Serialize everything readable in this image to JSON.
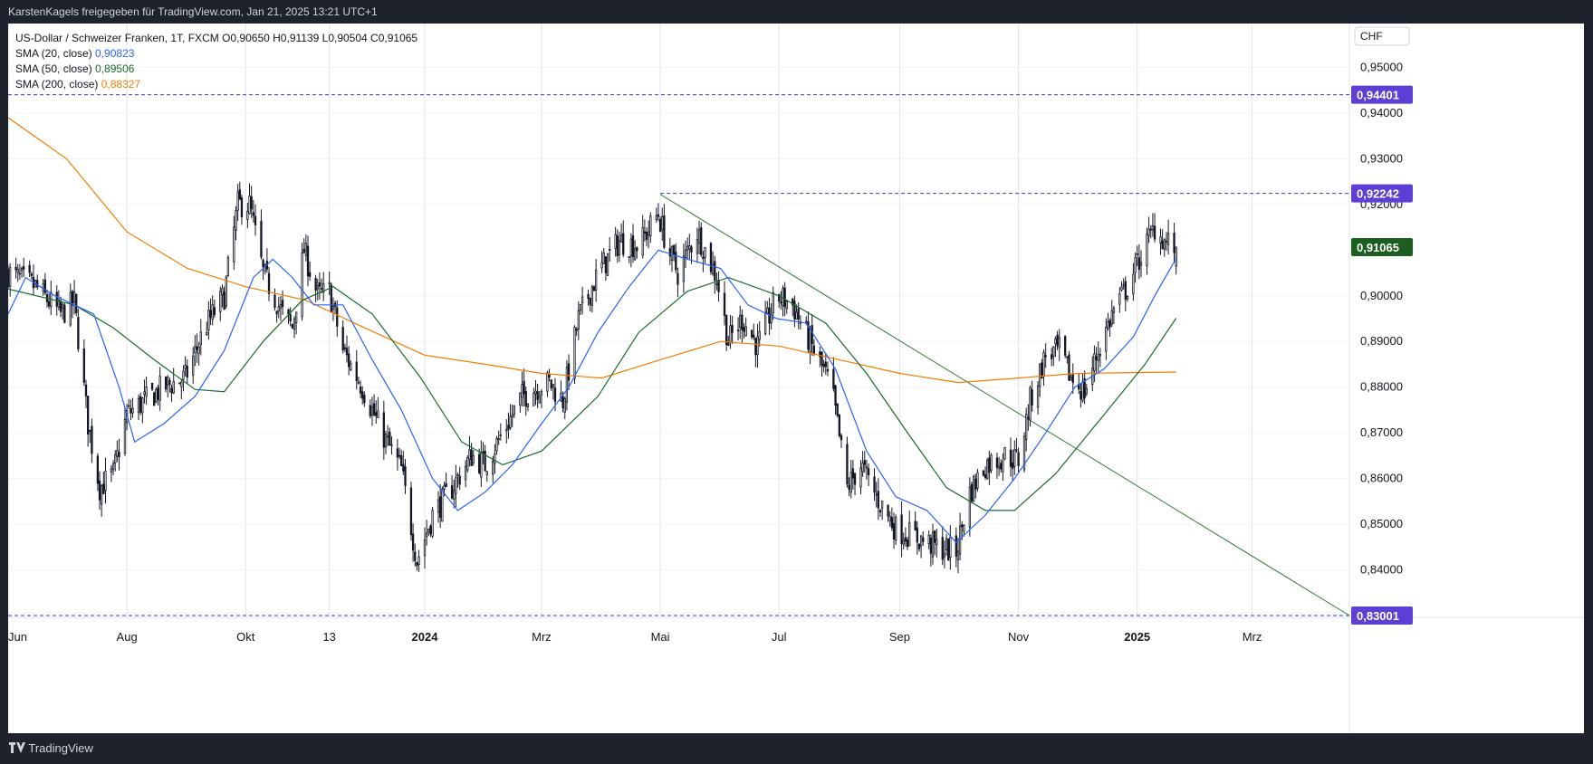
{
  "header": {
    "text": "KarstenKagels freigegeben für TradingView.com, Jan 21, 2025 13:21 UTC+1"
  },
  "legend": {
    "title": "US-Dollar / Schweizer Franken, 1T, FXCM",
    "ohlc": {
      "O": "O0,90650",
      "H": "H0,91139",
      "L": "L0,90504",
      "C": "C0,91065"
    },
    "sma20": {
      "label": "SMA (20, close)",
      "value": "0,90823",
      "color": "#2962ff"
    },
    "sma50": {
      "label": "SMA (50, close)",
      "value": "0,89506",
      "color": "#1b6b2a"
    },
    "sma200": {
      "label": "SMA (200, close)",
      "value": "0,88327",
      "color": "#f57c00"
    }
  },
  "currency_button": "CHF",
  "footer": {
    "brand": "TradingView"
  },
  "colors": {
    "up": "#ffffff",
    "down": "#131722",
    "h_level": "#3d3dbd",
    "trendline": "#2e7d32",
    "last_price_bg": "#1b5e20",
    "level_bg": "#5d3fd3"
  },
  "chart_data": {
    "type": "candlestick",
    "ylim": [
      0.8298,
      0.9596
    ],
    "y_ticks": [
      {
        "value": 0.95,
        "label": "0,95000"
      },
      {
        "value": 0.94,
        "label": "0,94000"
      },
      {
        "value": 0.93,
        "label": "0,93000"
      },
      {
        "value": 0.92,
        "label": "0,92000"
      },
      {
        "value": 0.9,
        "label": "0,90000"
      },
      {
        "value": 0.89,
        "label": "0,89000"
      },
      {
        "value": 0.88,
        "label": "0,88000"
      },
      {
        "value": 0.87,
        "label": "0,87000"
      },
      {
        "value": 0.86,
        "label": "0,86000"
      },
      {
        "value": 0.85,
        "label": "0,85000"
      },
      {
        "value": 0.84,
        "label": "0,84000"
      }
    ],
    "x_ticks": [
      {
        "date": "2023-06-01",
        "label": "Jun",
        "bold": false
      },
      {
        "date": "2023-08-01",
        "label": "Aug",
        "bold": false
      },
      {
        "date": "2023-10-01",
        "label": "Okt",
        "bold": false
      },
      {
        "date": "2023-11-13",
        "label": "13",
        "bold": false
      },
      {
        "date": "2024-01-01",
        "label": "2024",
        "bold": true
      },
      {
        "date": "2024-03-01",
        "label": "Mrz",
        "bold": false
      },
      {
        "date": "2024-05-01",
        "label": "Mai",
        "bold": false
      },
      {
        "date": "2024-07-01",
        "label": "Jul",
        "bold": false
      },
      {
        "date": "2024-09-01",
        "label": "Sep",
        "bold": false
      },
      {
        "date": "2024-11-01",
        "label": "Nov",
        "bold": false
      },
      {
        "date": "2025-01-01",
        "label": "2025",
        "bold": true
      },
      {
        "date": "2025-03-01",
        "label": "Mrz",
        "bold": false
      }
    ],
    "x_range": [
      "2023-06-01",
      "2025-04-20"
    ],
    "horizontal_levels": [
      {
        "value": 0.94401,
        "label": "0,94401",
        "from": "2023-06-01"
      },
      {
        "value": 0.92242,
        "label": "0,92242",
        "from": "2024-05-01"
      },
      {
        "value": 0.83001,
        "label": "0,83001",
        "from": "2023-06-01"
      }
    ],
    "last_price": {
      "value": 0.91065,
      "label": "0,91065"
    },
    "trendline": [
      {
        "date": "2024-05-01",
        "value": 0.9222
      },
      {
        "date": "2025-04-20",
        "value": 0.83
      }
    ],
    "price_path": [
      [
        "2023-06-01",
        0.905
      ],
      [
        "2023-06-15",
        0.902
      ],
      [
        "2023-06-28",
        0.896
      ],
      [
        "2023-07-05",
        0.8985
      ],
      [
        "2023-07-12",
        0.872
      ],
      [
        "2023-07-18",
        0.858
      ],
      [
        "2023-07-25",
        0.861
      ],
      [
        "2023-08-01",
        0.874
      ],
      [
        "2023-08-10",
        0.877
      ],
      [
        "2023-08-20",
        0.88
      ],
      [
        "2023-08-31",
        0.882
      ],
      [
        "2023-09-10",
        0.893
      ],
      [
        "2023-09-20",
        0.9
      ],
      [
        "2023-09-27",
        0.92
      ],
      [
        "2023-10-03",
        0.92
      ],
      [
        "2023-10-10",
        0.905
      ],
      [
        "2023-10-20",
        0.896
      ],
      [
        "2023-10-25",
        0.893
      ],
      [
        "2023-10-31",
        0.91
      ],
      [
        "2023-11-07",
        0.9
      ],
      [
        "2023-11-13",
        0.901
      ],
      [
        "2023-11-20",
        0.888
      ],
      [
        "2023-11-30",
        0.88
      ],
      [
        "2023-12-10",
        0.87
      ],
      [
        "2023-12-20",
        0.862
      ],
      [
        "2023-12-28",
        0.842
      ],
      [
        "2024-01-05",
        0.852
      ],
      [
        "2024-01-15",
        0.858
      ],
      [
        "2024-01-25",
        0.865
      ],
      [
        "2024-02-01",
        0.863
      ],
      [
        "2024-02-10",
        0.87
      ],
      [
        "2024-02-20",
        0.878
      ],
      [
        "2024-02-28",
        0.88
      ],
      [
        "2024-03-05",
        0.881
      ],
      [
        "2024-03-12",
        0.877
      ],
      [
        "2024-03-20",
        0.895
      ],
      [
        "2024-03-30",
        0.905
      ],
      [
        "2024-04-10",
        0.912
      ],
      [
        "2024-04-20",
        0.911
      ],
      [
        "2024-04-30",
        0.918
      ],
      [
        "2024-05-05",
        0.91
      ],
      [
        "2024-05-10",
        0.905
      ],
      [
        "2024-05-20",
        0.914
      ],
      [
        "2024-05-30",
        0.904
      ],
      [
        "2024-06-05",
        0.89
      ],
      [
        "2024-06-12",
        0.895
      ],
      [
        "2024-06-20",
        0.889
      ],
      [
        "2024-06-30",
        0.9
      ],
      [
        "2024-07-08",
        0.898
      ],
      [
        "2024-07-20",
        0.887
      ],
      [
        "2024-07-28",
        0.88
      ],
      [
        "2024-08-05",
        0.858
      ],
      [
        "2024-08-12",
        0.863
      ],
      [
        "2024-08-20",
        0.856
      ],
      [
        "2024-08-30",
        0.849
      ],
      [
        "2024-09-10",
        0.847
      ],
      [
        "2024-09-20",
        0.845
      ],
      [
        "2024-09-30",
        0.844
      ],
      [
        "2024-10-07",
        0.857
      ],
      [
        "2024-10-15",
        0.863
      ],
      [
        "2024-10-25",
        0.865
      ],
      [
        "2024-11-01",
        0.864
      ],
      [
        "2024-11-07",
        0.877
      ],
      [
        "2024-11-15",
        0.887
      ],
      [
        "2024-11-22",
        0.888
      ],
      [
        "2024-11-28",
        0.882
      ],
      [
        "2024-12-05",
        0.879
      ],
      [
        "2024-12-12",
        0.888
      ],
      [
        "2024-12-20",
        0.897
      ],
      [
        "2024-12-27",
        0.902
      ],
      [
        "2025-01-03",
        0.909
      ],
      [
        "2025-01-10",
        0.915
      ],
      [
        "2025-01-15",
        0.912
      ],
      [
        "2025-01-21",
        0.9107
      ]
    ],
    "sma20_path": [
      [
        "2023-06-01",
        0.896
      ],
      [
        "2023-06-10",
        0.904
      ],
      [
        "2023-06-25",
        0.9
      ],
      [
        "2023-07-15",
        0.896
      ],
      [
        "2023-07-28",
        0.88
      ],
      [
        "2023-08-05",
        0.868
      ],
      [
        "2023-08-20",
        0.872
      ],
      [
        "2023-09-05",
        0.878
      ],
      [
        "2023-09-20",
        0.888
      ],
      [
        "2023-10-05",
        0.904
      ],
      [
        "2023-10-15",
        0.908
      ],
      [
        "2023-10-25",
        0.904
      ],
      [
        "2023-11-05",
        0.898
      ],
      [
        "2023-11-20",
        0.898
      ],
      [
        "2023-12-05",
        0.886
      ],
      [
        "2023-12-20",
        0.875
      ],
      [
        "2024-01-05",
        0.86
      ],
      [
        "2024-01-18",
        0.853
      ],
      [
        "2024-02-01",
        0.857
      ],
      [
        "2024-02-15",
        0.863
      ],
      [
        "2024-03-01",
        0.872
      ],
      [
        "2024-03-15",
        0.88
      ],
      [
        "2024-03-30",
        0.892
      ],
      [
        "2024-04-15",
        0.902
      ],
      [
        "2024-04-30",
        0.91
      ],
      [
        "2024-05-15",
        0.908
      ],
      [
        "2024-06-01",
        0.906
      ],
      [
        "2024-06-15",
        0.898
      ],
      [
        "2024-06-30",
        0.895
      ],
      [
        "2024-07-15",
        0.894
      ],
      [
        "2024-07-30",
        0.884
      ],
      [
        "2024-08-15",
        0.866
      ],
      [
        "2024-08-30",
        0.856
      ],
      [
        "2024-09-15",
        0.853
      ],
      [
        "2024-09-30",
        0.846
      ],
      [
        "2024-10-15",
        0.852
      ],
      [
        "2024-10-30",
        0.86
      ],
      [
        "2024-11-15",
        0.87
      ],
      [
        "2024-11-30",
        0.88
      ],
      [
        "2024-12-15",
        0.884
      ],
      [
        "2024-12-30",
        0.891
      ],
      [
        "2025-01-10",
        0.9
      ],
      [
        "2025-01-21",
        0.9082
      ]
    ],
    "sma50_path": [
      [
        "2023-06-01",
        0.9015
      ],
      [
        "2023-07-05",
        0.898
      ],
      [
        "2023-07-25",
        0.893
      ],
      [
        "2023-08-15",
        0.886
      ],
      [
        "2023-09-05",
        0.8795
      ],
      [
        "2023-09-20",
        0.879
      ],
      [
        "2023-10-10",
        0.89
      ],
      [
        "2023-10-30",
        0.899
      ],
      [
        "2023-11-15",
        0.902
      ],
      [
        "2023-12-05",
        0.896
      ],
      [
        "2023-12-30",
        0.882
      ],
      [
        "2024-01-20",
        0.868
      ],
      [
        "2024-02-10",
        0.863
      ],
      [
        "2024-03-01",
        0.866
      ],
      [
        "2024-03-30",
        0.878
      ],
      [
        "2024-04-20",
        0.892
      ],
      [
        "2024-05-15",
        0.901
      ],
      [
        "2024-06-05",
        0.904
      ],
      [
        "2024-07-01",
        0.9
      ],
      [
        "2024-07-25",
        0.894
      ],
      [
        "2024-08-15",
        0.883
      ],
      [
        "2024-09-05",
        0.87
      ],
      [
        "2024-09-25",
        0.858
      ],
      [
        "2024-10-15",
        0.853
      ],
      [
        "2024-10-30",
        0.853
      ],
      [
        "2024-11-20",
        0.861
      ],
      [
        "2024-12-15",
        0.874
      ],
      [
        "2025-01-05",
        0.885
      ],
      [
        "2025-01-21",
        0.8951
      ]
    ],
    "sma200_path": [
      [
        "2023-06-01",
        0.939
      ],
      [
        "2023-07-01",
        0.93
      ],
      [
        "2023-08-01",
        0.914
      ],
      [
        "2023-09-01",
        0.906
      ],
      [
        "2023-10-01",
        0.902
      ],
      [
        "2023-11-01",
        0.899
      ],
      [
        "2023-12-01",
        0.893
      ],
      [
        "2024-01-01",
        0.887
      ],
      [
        "2024-02-01",
        0.885
      ],
      [
        "2024-03-01",
        0.883
      ],
      [
        "2024-04-01",
        0.882
      ],
      [
        "2024-05-01",
        0.886
      ],
      [
        "2024-06-01",
        0.89
      ],
      [
        "2024-07-01",
        0.889
      ],
      [
        "2024-08-01",
        0.886
      ],
      [
        "2024-09-01",
        0.883
      ],
      [
        "2024-10-01",
        0.881
      ],
      [
        "2024-11-01",
        0.882
      ],
      [
        "2024-12-01",
        0.883
      ],
      [
        "2025-01-21",
        0.8833
      ]
    ]
  }
}
